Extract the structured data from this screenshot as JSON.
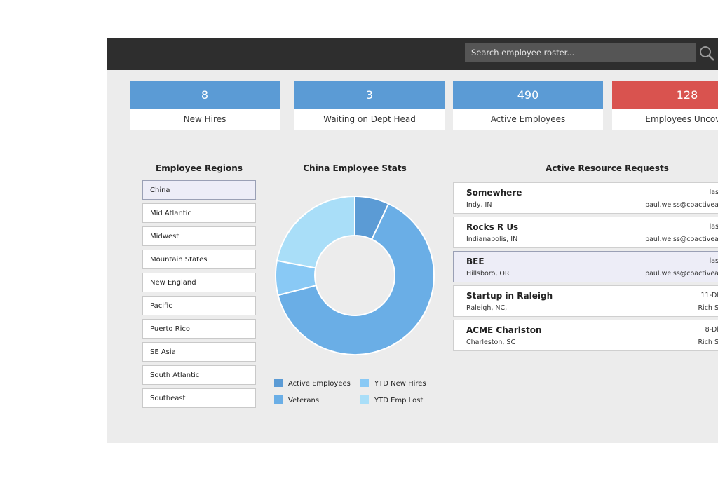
{
  "search": {
    "placeholder": "Search employee roster..."
  },
  "stats": [
    {
      "value": "8",
      "label": "New Hires"
    },
    {
      "value": "3",
      "label": "Waiting on Dept Head"
    },
    {
      "value": "490",
      "label": "Active Employees"
    },
    {
      "value": "128",
      "label": "Employees Uncover"
    }
  ],
  "regions": {
    "title": "Employee Regions",
    "items": [
      "China",
      "Mid Atlantic",
      "Midwest",
      "Mountain States",
      "New England",
      "Pacific",
      "Puerto Rico",
      "SE Asia",
      "South Atlantic",
      "Southeast"
    ],
    "selected": "China"
  },
  "stats_chart": {
    "title": "China Employee Stats",
    "legend": [
      "Active Employees",
      "YTD New Hires",
      "Veterans",
      "YTD Emp Lost"
    ]
  },
  "chart_data": {
    "type": "pie",
    "title": "China Employee Stats",
    "donut": true,
    "series": [
      {
        "name": "Active Employees",
        "value": 7,
        "color": "#5b9bd5"
      },
      {
        "name": "Veterans",
        "value": 64,
        "color": "#6aaee6"
      },
      {
        "name": "YTD New Hires",
        "value": 7,
        "color": "#89c9f5"
      },
      {
        "name": "YTD Emp Lost",
        "value": 22,
        "color": "#a9def8"
      }
    ],
    "legend_position": "bottom"
  },
  "requests": {
    "title": "Active Resource Requests",
    "items": [
      {
        "name": "Somewhere",
        "location": "Indy, IN",
        "right1": "las",
        "right2": "paul.weiss@coactivea"
      },
      {
        "name": "Rocks R Us",
        "location": "Indianapolis, IN",
        "right1": "las",
        "right2": "paul.weiss@coactivea"
      },
      {
        "name": "BEE",
        "location": "Hillsboro, OR",
        "right1": "las",
        "right2": "paul.weiss@coactivea"
      },
      {
        "name": "Startup in Raleigh",
        "location": "Raleigh, NC,",
        "right1": "11-Dl",
        "right2": "Rich S"
      },
      {
        "name": "ACME Charlston",
        "location": "Charleston, SC",
        "right1": "8-Dl",
        "right2": "Rich S"
      }
    ],
    "selected_index": 2
  }
}
